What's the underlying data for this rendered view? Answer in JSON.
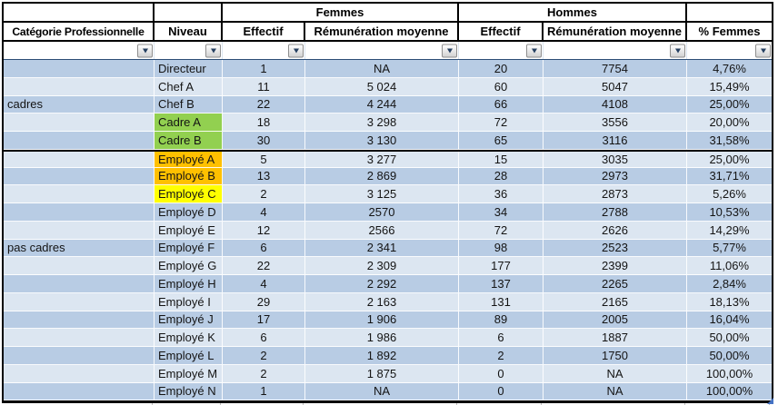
{
  "table": {
    "top_row": {
      "femmes": "Femmes",
      "hommes": "Hommes"
    },
    "header_row": [
      "Catégorie Professionnelle",
      "Niveau",
      "Effectif",
      "Rémunération moyenne",
      "Effectif",
      "Rémunération moyenne",
      "% Femmes"
    ],
    "filter_row": [
      "Column1",
      "Column2",
      "Column3",
      "Column4",
      "Column5",
      "Column6",
      "Column7"
    ],
    "colors": {
      "header_blue": "#4F81BD",
      "row_dark": "#B8CCE4",
      "row_light": "#DCE6F1",
      "green": "#92D050",
      "orange": "#FFC000",
      "yellow": "#FFFF00"
    },
    "rows": [
      {
        "cat": "",
        "niv": "Directeur",
        "bg": null,
        "sep": false,
        "f_eff": "1",
        "f_rem": "NA",
        "h_eff": "20",
        "h_rem": "7754",
        "pct": "4,76%"
      },
      {
        "cat": "",
        "niv": "Chef A",
        "bg": null,
        "sep": false,
        "f_eff": "11",
        "f_rem": "5 024",
        "h_eff": "60",
        "h_rem": "5047",
        "pct": "15,49%"
      },
      {
        "cat": "cadres",
        "niv": "Chef B",
        "bg": null,
        "sep": false,
        "f_eff": "22",
        "f_rem": "4 244",
        "h_eff": "66",
        "h_rem": "4108",
        "pct": "25,00%"
      },
      {
        "cat": "",
        "niv": "Cadre A",
        "bg": "green",
        "sep": false,
        "f_eff": "18",
        "f_rem": "3 298",
        "h_eff": "72",
        "h_rem": "3556",
        "pct": "20,00%"
      },
      {
        "cat": "",
        "niv": "Cadre B",
        "bg": "green",
        "sep": false,
        "f_eff": "30",
        "f_rem": "3 130",
        "h_eff": "65",
        "h_rem": "3116",
        "pct": "31,58%"
      },
      {
        "cat": "",
        "niv": "Employé A",
        "bg": "orange",
        "sep": true,
        "f_eff": "5",
        "f_rem": "3 277",
        "h_eff": "15",
        "h_rem": "3035",
        "pct": "25,00%"
      },
      {
        "cat": "",
        "niv": "Employé B",
        "bg": "orange",
        "sep": false,
        "f_eff": "13",
        "f_rem": "2 869",
        "h_eff": "28",
        "h_rem": "2973",
        "pct": "31,71%"
      },
      {
        "cat": "",
        "niv": "Employé C",
        "bg": "yellow",
        "sep": false,
        "f_eff": "2",
        "f_rem": "3 125",
        "h_eff": "36",
        "h_rem": "2873",
        "pct": "5,26%"
      },
      {
        "cat": "",
        "niv": "Employé D",
        "bg": null,
        "sep": false,
        "f_eff": "4",
        "f_rem": "2570",
        "h_eff": "34",
        "h_rem": "2788",
        "pct": "10,53%"
      },
      {
        "cat": "",
        "niv": "Employé E",
        "bg": null,
        "sep": false,
        "f_eff": "12",
        "f_rem": "2566",
        "h_eff": "72",
        "h_rem": "2626",
        "pct": "14,29%"
      },
      {
        "cat": "pas cadres",
        "niv": "Employé F",
        "bg": null,
        "sep": false,
        "f_eff": "6",
        "f_rem": "2 341",
        "h_eff": "98",
        "h_rem": "2523",
        "pct": "5,77%"
      },
      {
        "cat": "",
        "niv": "Employé G",
        "bg": null,
        "sep": false,
        "f_eff": "22",
        "f_rem": "2 309",
        "h_eff": "177",
        "h_rem": "2399",
        "pct": "11,06%"
      },
      {
        "cat": "",
        "niv": "Employé H",
        "bg": null,
        "sep": false,
        "f_eff": "4",
        "f_rem": "2 292",
        "h_eff": "137",
        "h_rem": "2265",
        "pct": "2,84%"
      },
      {
        "cat": "",
        "niv": "Employé I",
        "bg": null,
        "sep": false,
        "f_eff": "29",
        "f_rem": "2 163",
        "h_eff": "131",
        "h_rem": "2165",
        "pct": "18,13%"
      },
      {
        "cat": "",
        "niv": "Employé J",
        "bg": null,
        "sep": false,
        "f_eff": "17",
        "f_rem": "1 906",
        "h_eff": "89",
        "h_rem": "2005",
        "pct": "16,04%"
      },
      {
        "cat": "",
        "niv": "Employé K",
        "bg": null,
        "sep": false,
        "f_eff": "6",
        "f_rem": "1 986",
        "h_eff": "6",
        "h_rem": "1887",
        "pct": "50,00%"
      },
      {
        "cat": "",
        "niv": "Employé L",
        "bg": null,
        "sep": false,
        "f_eff": "2",
        "f_rem": "1 892",
        "h_eff": "2",
        "h_rem": "1750",
        "pct": "50,00%"
      },
      {
        "cat": "",
        "niv": "Employé M",
        "bg": null,
        "sep": false,
        "f_eff": "2",
        "f_rem": "1 875",
        "h_eff": "0",
        "h_rem": "NA",
        "pct": "100,00%"
      },
      {
        "cat": "",
        "niv": "Employé N",
        "bg": null,
        "sep": false,
        "f_eff": "1",
        "f_rem": "NA",
        "h_eff": "0",
        "h_rem": "NA",
        "pct": "100,00%"
      }
    ]
  }
}
